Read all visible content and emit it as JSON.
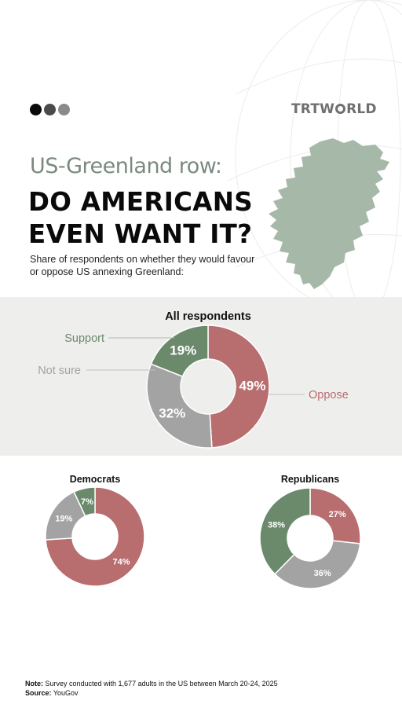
{
  "header": {
    "brand": "TRTWORLD",
    "brand_left": "TRTW",
    "brand_right": "RLD",
    "subtitle": "US-Greenland row:",
    "title_line1": "DO AMERICANS",
    "title_line2": "EVEN WANT IT?",
    "description": "Share of respondents on whether they would favour or oppose US annexing Greenland:"
  },
  "colors": {
    "support": "#6b8a6c",
    "not_sure": "#a3a3a3",
    "oppose": "#b86d6f",
    "map": "#a6b8a8",
    "band": "#eeeeec"
  },
  "icons": [
    "dot-black-icon",
    "dot-darkgray-icon",
    "dot-gray-icon",
    "trt-world-logo",
    "greenland-map-icon"
  ],
  "chart_data": [
    {
      "type": "pie",
      "title": "All respondents",
      "categories": [
        "Oppose",
        "Not sure",
        "Support"
      ],
      "values": [
        49,
        32,
        19
      ],
      "labels": [
        "49%",
        "32%",
        "19%"
      ],
      "legend_labels": {
        "support": "Support",
        "not_sure": "Not sure",
        "oppose": "Oppose"
      }
    },
    {
      "type": "pie",
      "title": "Democrats",
      "categories": [
        "Oppose",
        "Not sure",
        "Support"
      ],
      "values": [
        74,
        19,
        7
      ],
      "labels": [
        "74%",
        "19%",
        "7%"
      ]
    },
    {
      "type": "pie",
      "title": "Republicans",
      "categories": [
        "Oppose",
        "Not sure",
        "Support"
      ],
      "values": [
        27,
        36,
        38
      ],
      "labels": [
        "27%",
        "36%",
        "38%"
      ]
    }
  ],
  "footer": {
    "note_label": "Note:",
    "note_text": " Survey conducted with 1,677 adults in the US between March 20-24, 2025",
    "source_label": "Source:",
    "source_text": " YouGov"
  }
}
